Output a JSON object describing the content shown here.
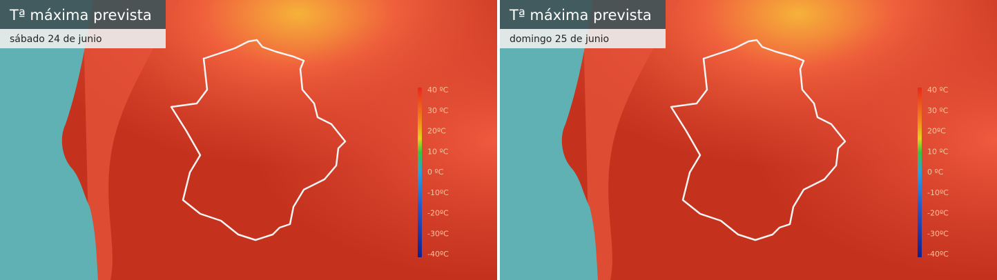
{
  "panels": [
    {
      "title": "Tª máxima prevista",
      "date": "sábado 24 de junio",
      "legend": [
        "40 ºC",
        "30 ºC",
        "20ºC",
        "10 ºC",
        "0 ºC",
        "-10ºC",
        "-20ºC",
        "-30ºC",
        "-40ºC"
      ]
    },
    {
      "title": "Tª máxima prevista",
      "date": "domingo 25 de junio",
      "legend": [
        "40 ºC",
        "30 ºC",
        "20ºC",
        "10 ºC",
        "0 ºC",
        "-10ºC",
        "-20ºC",
        "-30ºC",
        "-40ºC"
      ]
    }
  ]
}
